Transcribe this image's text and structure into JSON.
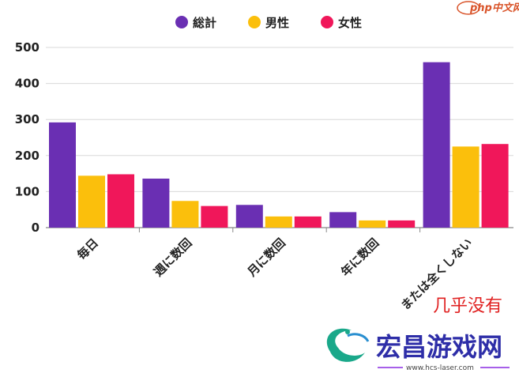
{
  "chart_data": {
    "type": "bar",
    "categories": [
      "毎日",
      "週に数回",
      "月に数回",
      "年に数回",
      "またはまったくしない"
    ],
    "category_labels": [
      "毎日",
      "週に数回",
      "月に数回",
      "年に数回",
      "または全くしない"
    ],
    "series": [
      {
        "name": "総計",
        "color": "#6a2fb3",
        "values": [
          292,
          136,
          63,
          43,
          459
        ]
      },
      {
        "name": "男性",
        "color": "#fbbf0c",
        "values": [
          144,
          74,
          31,
          20,
          225
        ]
      },
      {
        "name": "女性",
        "color": "#f0175a",
        "values": [
          148,
          60,
          31,
          20,
          232
        ]
      }
    ],
    "yticks": [
      0,
      100,
      200,
      300,
      400,
      500
    ],
    "ylim": [
      0,
      520
    ],
    "grid": true,
    "legend": "top-center"
  },
  "watermarks": {
    "top_right": "php中文网",
    "overlay_text": "几乎没有",
    "bottom_brand": "宏昌游戏网",
    "bottom_url": "www.hcs-laser.com"
  }
}
